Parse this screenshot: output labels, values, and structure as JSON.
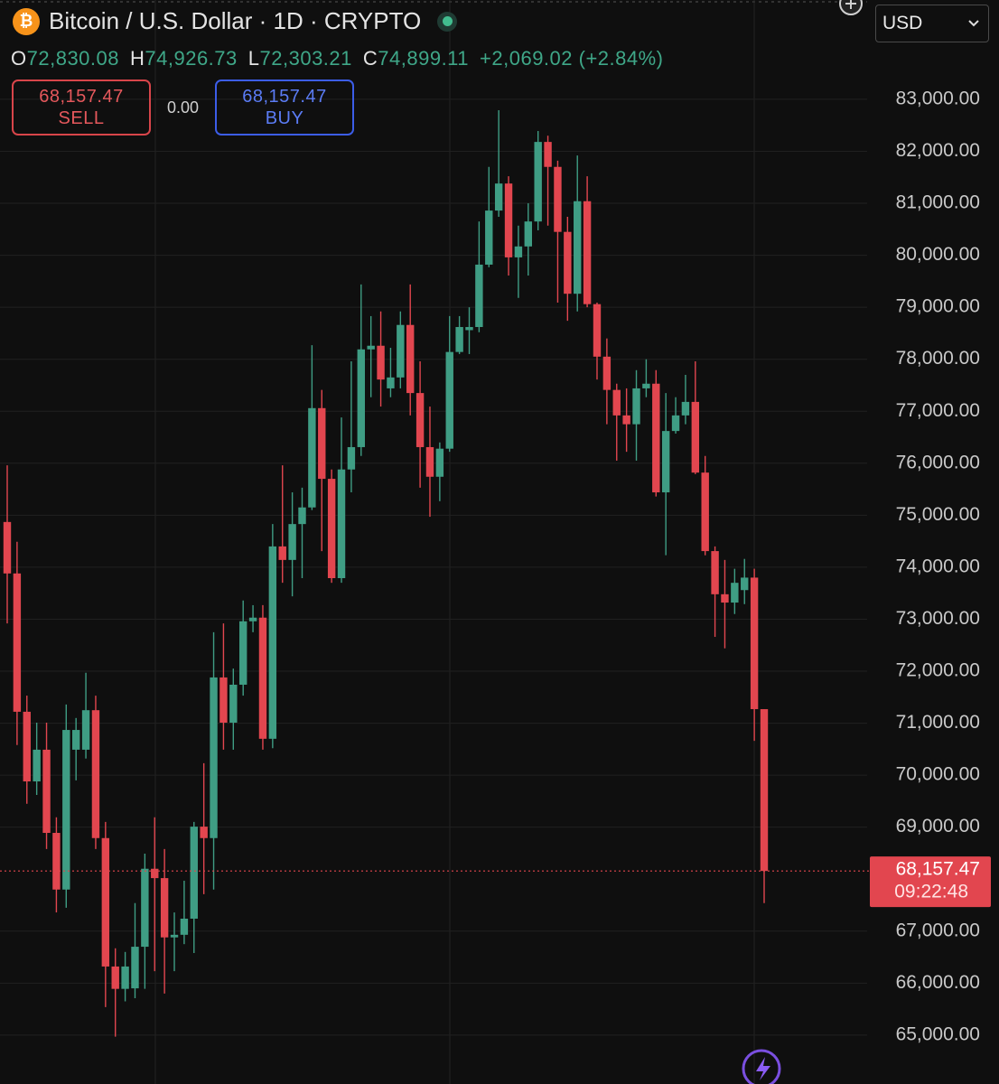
{
  "chart_data": {
    "type": "candlestick",
    "title": "Bitcoin / U.S. Dollar · 1D · CRYPTO",
    "readout": [
      {
        "key": "O",
        "value": "72,830.08"
      },
      {
        "key": "H",
        "value": "74,926.73"
      },
      {
        "key": "L",
        "value": "72,303.21"
      },
      {
        "key": "C",
        "value": "74,899.11"
      }
    ],
    "change": "+2,069.02 (+2.84%)",
    "sell_price": "68,157.47",
    "sell_label": "SELL",
    "spread": "0.00",
    "buy_price": "68,157.47",
    "buy_label": "BUY",
    "currency": "USD",
    "last_price": {
      "value": 68157.47,
      "label": "68,157.47"
    },
    "countdown": "09:22:48",
    "up_color": "#3f9d84",
    "down_color": "#e2464f",
    "grid": true,
    "ylim": [
      64060,
      84910
    ],
    "yticks": [
      {
        "value": 65000,
        "label": "65,000.00"
      },
      {
        "value": 66000,
        "label": "66,000.00"
      },
      {
        "value": 67000,
        "label": "67,000.00"
      },
      {
        "value": 69000,
        "label": "69,000.00"
      },
      {
        "value": 70000,
        "label": "70,000.00"
      },
      {
        "value": 71000,
        "label": "71,000.00"
      },
      {
        "value": 72000,
        "label": "72,000.00"
      },
      {
        "value": 73000,
        "label": "73,000.00"
      },
      {
        "value": 74000,
        "label": "74,000.00"
      },
      {
        "value": 75000,
        "label": "75,000.00"
      },
      {
        "value": 76000,
        "label": "76,000.00"
      },
      {
        "value": 77000,
        "label": "77,000.00"
      },
      {
        "value": 78000,
        "label": "78,000.00"
      },
      {
        "value": 79000,
        "label": "79,000.00"
      },
      {
        "value": 80000,
        "label": "80,000.00"
      },
      {
        "value": 81000,
        "label": "81,000.00"
      },
      {
        "value": 82000,
        "label": "82,000.00"
      },
      {
        "value": 83000,
        "label": "83,000.00"
      }
    ],
    "open": [
      74870,
      73880,
      71220,
      69880,
      70490,
      68890,
      67800,
      70490,
      70490,
      71250,
      68790,
      66320,
      65890,
      65900,
      66700,
      68200,
      68020,
      66880,
      66930,
      67240,
      69010,
      68790,
      71880,
      71010,
      71740,
      72960,
      73030,
      70700,
      74400,
      74140,
      74830,
      75150,
      77060,
      75700,
      73790,
      75880,
      76310,
      78190,
      78260,
      77440,
      77650,
      78660,
      77350,
      76310,
      75740,
      76280,
      78140,
      78560,
      78620,
      79820,
      80860,
      81380,
      79960,
      80170,
      80650,
      82180,
      81700,
      80450,
      79260,
      81040,
      79060,
      78050,
      77410,
      76920,
      76750,
      77440,
      77530,
      75440,
      76620,
      76920,
      77180,
      75820,
      74310,
      73480,
      73320,
      73560,
      73800,
      71270
    ],
    "high": [
      75960,
      74490,
      71530,
      71010,
      71010,
      69190,
      71360,
      71100,
      71970,
      71530,
      69100,
      66670,
      66600,
      67540,
      68490,
      69190,
      68580,
      67360,
      67970,
      69100,
      70230,
      72750,
      72920,
      72050,
      73360,
      73270,
      73270,
      74830,
      75960,
      75440,
      75530,
      78270,
      77410,
      75880,
      76880,
      77960,
      79440,
      78830,
      78920,
      78220,
      78920,
      79440,
      77960,
      77090,
      76400,
      78830,
      78830,
      79000,
      80650,
      81700,
      82790,
      81520,
      80570,
      81000,
      82390,
      82300,
      81820,
      80740,
      81920,
      81520,
      79090,
      78400,
      77530,
      77440,
      77790,
      78000,
      77790,
      77350,
      77270,
      77700,
      77960,
      76140,
      74400,
      74140,
      73970,
      74160,
      73970,
      71270
    ],
    "low": [
      72920,
      70580,
      69450,
      69620,
      68580,
      67360,
      67450,
      69900,
      70320,
      68580,
      65540,
      64970,
      65650,
      65710,
      65890,
      66230,
      65800,
      66230,
      66750,
      66580,
      67710,
      67800,
      70490,
      70490,
      71530,
      72750,
      70490,
      70520,
      73700,
      73440,
      73790,
      75100,
      74310,
      73700,
      73700,
      75440,
      76140,
      77270,
      77090,
      77270,
      77440,
      76920,
      75530,
      74970,
      75270,
      76220,
      78100,
      78100,
      78520,
      79770,
      80740,
      79610,
      79180,
      79610,
      80480,
      80570,
      79090,
      78740,
      78920,
      79000,
      77610,
      76750,
      76050,
      76220,
      76050,
      77270,
      75360,
      74230,
      76570,
      76750,
      75790,
      74230,
      72660,
      72440,
      73100,
      73290,
      70660,
      67540
    ],
    "close": [
      73880,
      71220,
      69880,
      70490,
      68890,
      67800,
      70870,
      70870,
      71250,
      68790,
      66320,
      65890,
      66320,
      66700,
      68200,
      68020,
      66880,
      66930,
      67240,
      69010,
      68790,
      71880,
      71010,
      71740,
      72960,
      73030,
      70700,
      74400,
      74140,
      74830,
      75150,
      77060,
      75700,
      73790,
      75880,
      76310,
      78190,
      78260,
      77610,
      77650,
      78660,
      77350,
      76310,
      75740,
      76280,
      78140,
      78620,
      78620,
      79820,
      80860,
      81380,
      79960,
      80170,
      80650,
      82180,
      81700,
      80450,
      79260,
      81040,
      79060,
      78050,
      77410,
      76920,
      76750,
      77440,
      77530,
      75440,
      76620,
      76920,
      77180,
      75820,
      74310,
      73480,
      73320,
      73700,
      73800,
      71270,
      68157.47
    ]
  }
}
